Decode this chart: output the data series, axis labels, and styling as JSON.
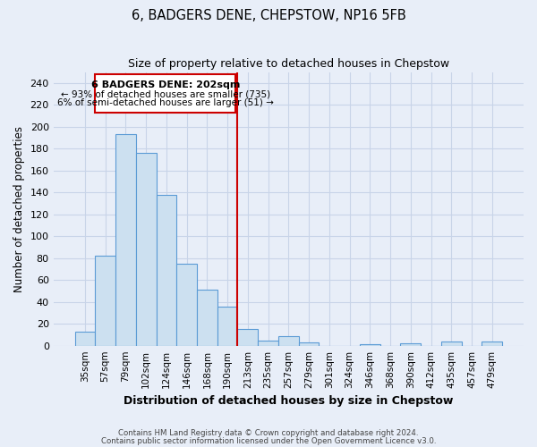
{
  "title": "6, BADGERS DENE, CHEPSTOW, NP16 5FB",
  "subtitle": "Size of property relative to detached houses in Chepstow",
  "xlabel": "Distribution of detached houses by size in Chepstow",
  "ylabel": "Number of detached properties",
  "bar_labels": [
    "35sqm",
    "57sqm",
    "79sqm",
    "102sqm",
    "124sqm",
    "146sqm",
    "168sqm",
    "190sqm",
    "213sqm",
    "235sqm",
    "257sqm",
    "279sqm",
    "301sqm",
    "324sqm",
    "346sqm",
    "368sqm",
    "390sqm",
    "412sqm",
    "435sqm",
    "457sqm",
    "479sqm"
  ],
  "bar_values": [
    13,
    82,
    193,
    176,
    138,
    75,
    51,
    36,
    15,
    5,
    9,
    3,
    0,
    0,
    1,
    0,
    2,
    0,
    4,
    0,
    4
  ],
  "bar_color": "#cce0f0",
  "bar_edge_color": "#5b9bd5",
  "vline_index": 8,
  "vline_color": "#cc0000",
  "ylim": [
    0,
    250
  ],
  "yticks": [
    0,
    20,
    40,
    60,
    80,
    100,
    120,
    140,
    160,
    180,
    200,
    220,
    240
  ],
  "annotation_title": "6 BADGERS DENE: 202sqm",
  "annotation_line1": "← 93% of detached houses are smaller (735)",
  "annotation_line2": "6% of semi-detached houses are larger (51) →",
  "annotation_box_color": "#ffffff",
  "annotation_box_edge": "#cc0000",
  "footer1": "Contains HM Land Registry data © Crown copyright and database right 2024.",
  "footer2": "Contains public sector information licensed under the Open Government Licence v3.0.",
  "background_color": "#e8eef8",
  "grid_color": "#c8d4e8"
}
